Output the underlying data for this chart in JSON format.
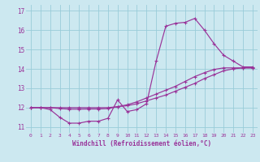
{
  "bg_color": "#cce8f0",
  "grid_color": "#99ccd9",
  "line_color": "#993399",
  "xlim": [
    -0.5,
    23.5
  ],
  "ylim": [
    10.7,
    17.3
  ],
  "xticks": [
    0,
    1,
    2,
    3,
    4,
    5,
    6,
    7,
    8,
    9,
    10,
    11,
    12,
    13,
    14,
    15,
    16,
    17,
    18,
    19,
    20,
    21,
    22,
    23
  ],
  "yticks": [
    11,
    12,
    13,
    14,
    15,
    16,
    17
  ],
  "xlabel": "Windchill (Refroidissement éolien,°C)",
  "line1_x": [
    0,
    1,
    2,
    3,
    4,
    5,
    6,
    7,
    8,
    9,
    10,
    11,
    12,
    13,
    14,
    15,
    16,
    17,
    18,
    19,
    20,
    21,
    22,
    23
  ],
  "line1_y": [
    12.0,
    12.0,
    11.9,
    11.5,
    11.2,
    11.2,
    11.3,
    11.3,
    11.45,
    12.4,
    11.8,
    11.9,
    12.2,
    14.4,
    16.2,
    16.35,
    16.4,
    16.6,
    16.0,
    15.3,
    14.7,
    14.4,
    14.1,
    14.1
  ],
  "line2_x": [
    0,
    1,
    2,
    3,
    4,
    5,
    6,
    7,
    8,
    9,
    10,
    11,
    12,
    13,
    14,
    15,
    16,
    17,
    18,
    19,
    20,
    21,
    22,
    23
  ],
  "line2_y": [
    12.0,
    12.0,
    12.0,
    12.0,
    12.0,
    12.0,
    12.0,
    12.0,
    12.0,
    12.05,
    12.1,
    12.2,
    12.35,
    12.5,
    12.65,
    12.85,
    13.05,
    13.25,
    13.5,
    13.7,
    13.9,
    14.0,
    14.05,
    14.05
  ],
  "line3_x": [
    0,
    1,
    2,
    3,
    4,
    5,
    6,
    7,
    8,
    9,
    10,
    11,
    12,
    13,
    14,
    15,
    16,
    17,
    18,
    19,
    20,
    21,
    22,
    23
  ],
  "line3_y": [
    12.0,
    12.0,
    12.0,
    11.95,
    11.92,
    11.92,
    11.93,
    11.93,
    11.95,
    12.05,
    12.15,
    12.3,
    12.5,
    12.7,
    12.9,
    13.1,
    13.35,
    13.6,
    13.8,
    13.97,
    14.05,
    14.05,
    14.05,
    14.05
  ]
}
